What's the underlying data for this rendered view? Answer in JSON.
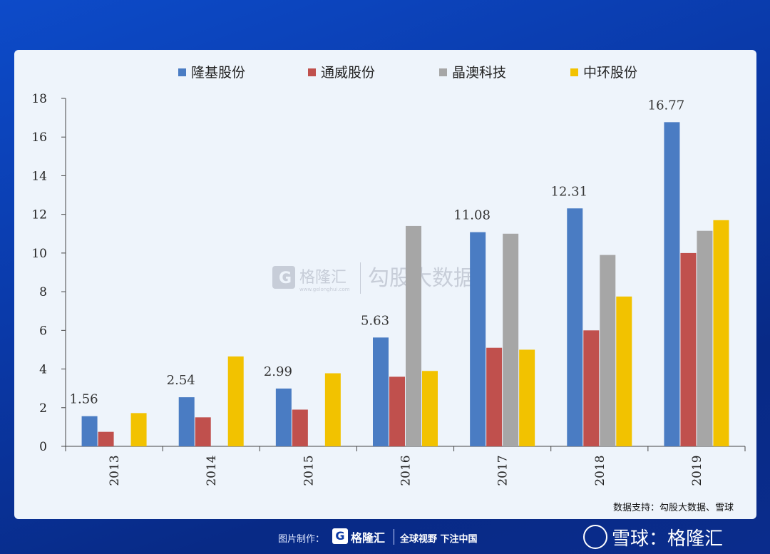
{
  "chart_data": {
    "type": "bar",
    "categories": [
      "2013",
      "2014",
      "2015",
      "2016",
      "2017",
      "2018",
      "2019"
    ],
    "series": [
      {
        "name": "隆基股份",
        "color": "#4a7cc3",
        "values": [
          1.56,
          2.54,
          2.99,
          5.63,
          11.08,
          12.31,
          16.77
        ]
      },
      {
        "name": "通威股份",
        "color": "#c0504d",
        "values": [
          0.75,
          1.5,
          1.9,
          3.6,
          5.1,
          6.0,
          10.0
        ]
      },
      {
        "name": "晶澳科技",
        "color": "#a6a6a6",
        "values": [
          null,
          null,
          null,
          11.4,
          11.0,
          9.9,
          11.15
        ]
      },
      {
        "name": "中环股份",
        "color": "#f2c200",
        "values": [
          1.72,
          4.65,
          3.78,
          3.9,
          5.0,
          7.75,
          11.7
        ]
      }
    ],
    "data_labels": [
      "1.56",
      "2.54",
      "2.99",
      "5.63",
      "11.08",
      "12.31",
      "16.77"
    ],
    "ylim": [
      0,
      18
    ],
    "yticks": [
      "0",
      "2",
      "4",
      "6",
      "8",
      "10",
      "12",
      "14",
      "16",
      "18"
    ],
    "legend": "top"
  },
  "watermark": {
    "brand": "格隆汇",
    "brand_sub": "www.gelonghui.com",
    "text": "勾股大数据"
  },
  "source_note": "数据支持：勾股大数据、雪球",
  "footer": {
    "made_by": "图片制作：",
    "logo_letter": "G",
    "logo_name": "格隆汇",
    "slogan": "全球视野 下注中国",
    "xueqiu": "雪球：格隆汇"
  }
}
